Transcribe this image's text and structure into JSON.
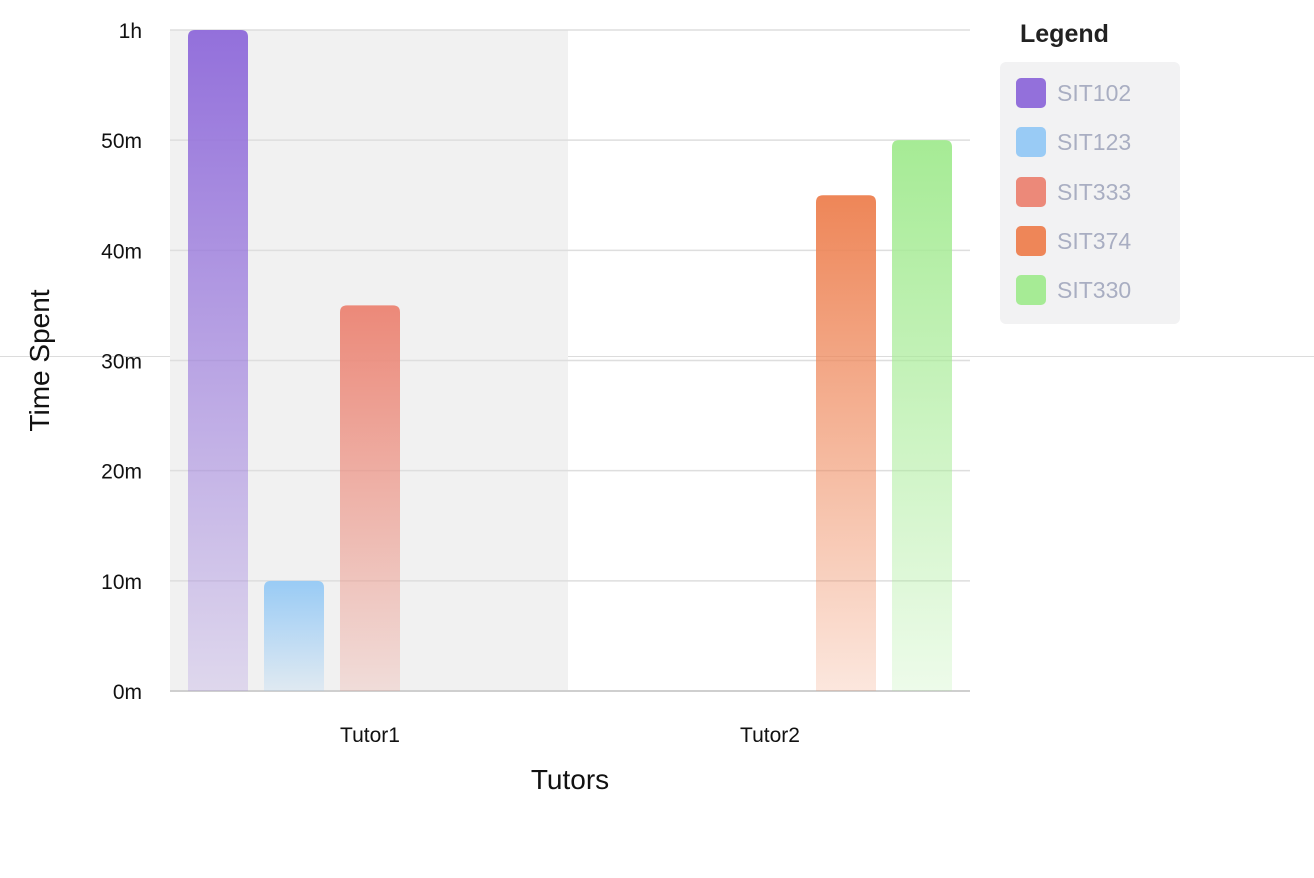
{
  "chart_data": {
    "type": "bar",
    "title": "",
    "xlabel": "Tutors",
    "ylabel": "Time Spent",
    "categories": [
      "Tutor1",
      "Tutor2"
    ],
    "y_unit": "minutes",
    "ylim": [
      0,
      60
    ],
    "yticks": [
      {
        "value": 0,
        "label": "0m"
      },
      {
        "value": 10,
        "label": "10m"
      },
      {
        "value": 20,
        "label": "20m"
      },
      {
        "value": 30,
        "label": "30m"
      },
      {
        "value": 40,
        "label": "40m"
      },
      {
        "value": 50,
        "label": "50m"
      },
      {
        "value": 60,
        "label": "1h"
      }
    ],
    "series": [
      {
        "name": "SIT102",
        "color": "#9370db",
        "values": [
          60,
          null
        ]
      },
      {
        "name": "SIT123",
        "color": "#99cbf5",
        "values": [
          10,
          null
        ]
      },
      {
        "name": "SIT333",
        "color": "#ec8979",
        "values": [
          35,
          null
        ]
      },
      {
        "name": "SIT374",
        "color": "#ee8658",
        "values": [
          null,
          45
        ]
      },
      {
        "name": "SIT330",
        "color": "#a6eb95",
        "values": [
          null,
          50
        ]
      }
    ],
    "highlighted_category": "Tutor1",
    "grid": true,
    "legend": {
      "title": "Legend",
      "placement": "right"
    }
  }
}
